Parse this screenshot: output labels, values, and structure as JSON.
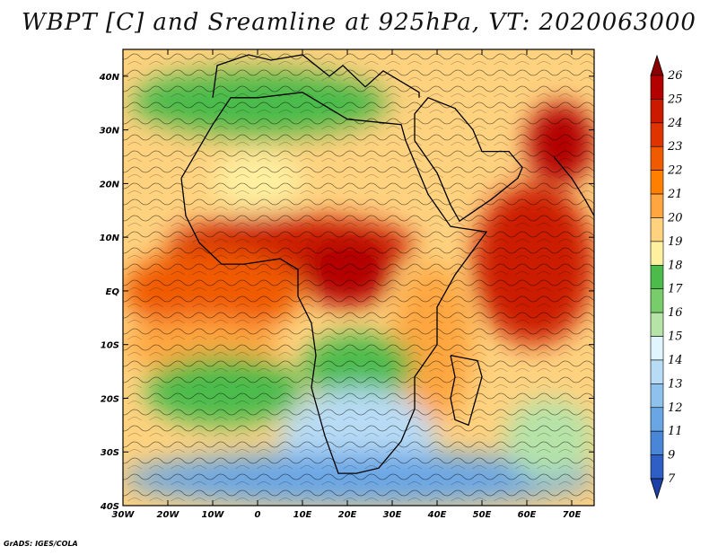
{
  "title": "WBPT [C] and Sreamline at 925hPa, VT: 2020063000",
  "credit": "GrADS: IGES/COLA",
  "map": {
    "lon_range": [
      -30,
      75
    ],
    "lat_range": [
      -40,
      45
    ],
    "lat_ticks": [
      {
        "value": 40,
        "label": "40N"
      },
      {
        "value": 30,
        "label": "30N"
      },
      {
        "value": 20,
        "label": "20N"
      },
      {
        "value": 10,
        "label": "10N"
      },
      {
        "value": 0,
        "label": "EQ"
      },
      {
        "value": -10,
        "label": "10S"
      },
      {
        "value": -20,
        "label": "20S"
      },
      {
        "value": -30,
        "label": "30S"
      },
      {
        "value": -40,
        "label": "40S"
      }
    ],
    "lon_ticks": [
      {
        "value": -30,
        "label": "30W"
      },
      {
        "value": -20,
        "label": "20W"
      },
      {
        "value": -10,
        "label": "10W"
      },
      {
        "value": 0,
        "label": "0"
      },
      {
        "value": 10,
        "label": "10E"
      },
      {
        "value": 20,
        "label": "20E"
      },
      {
        "value": 30,
        "label": "30E"
      },
      {
        "value": 40,
        "label": "40E"
      },
      {
        "value": 50,
        "label": "50E"
      },
      {
        "value": 60,
        "label": "60E"
      },
      {
        "value": 70,
        "label": "70E"
      }
    ],
    "field_regions": [
      {
        "name": "north-africa-warm",
        "lon": [
          -25,
          45
        ],
        "lat": [
          22,
          45
        ],
        "level": 19
      },
      {
        "name": "mediterranean-band",
        "lon": [
          -28,
          30
        ],
        "lat": [
          28,
          42
        ],
        "level": 17
      },
      {
        "name": "sahara-green",
        "lon": [
          -10,
          10
        ],
        "lat": [
          15,
          26
        ],
        "level": 18
      },
      {
        "name": "sahel-hot",
        "lon": [
          -20,
          35
        ],
        "lat": [
          3,
          14
        ],
        "level": 24
      },
      {
        "name": "central-africa-hot",
        "lon": [
          10,
          30
        ],
        "lat": [
          -3,
          10
        ],
        "level": 25
      },
      {
        "name": "arabian-sea-hot",
        "lon": [
          48,
          75
        ],
        "lat": [
          -10,
          20
        ],
        "level": 24
      },
      {
        "name": "india-hot",
        "lon": [
          60,
          75
        ],
        "lat": [
          20,
          35
        ],
        "level": 25
      },
      {
        "name": "gulf-guinea-warm",
        "lon": [
          -30,
          10
        ],
        "lat": [
          -8,
          8
        ],
        "level": 22
      },
      {
        "name": "south-atlantic-warm",
        "lon": [
          -30,
          5
        ],
        "lat": [
          -15,
          -5
        ],
        "level": 20
      },
      {
        "name": "east-africa-warm",
        "lon": [
          30,
          48
        ],
        "lat": [
          -25,
          5
        ],
        "level": 20
      },
      {
        "name": "southern-africa-green",
        "lon": [
          10,
          35
        ],
        "lat": [
          -20,
          -8
        ],
        "level": 17
      },
      {
        "name": "south-atlantic-green",
        "lon": [
          -25,
          10
        ],
        "lat": [
          -25,
          -12
        ],
        "level": 17
      },
      {
        "name": "southern-cool",
        "lon": [
          5,
          40
        ],
        "lat": [
          -38,
          -18
        ],
        "level": 13
      },
      {
        "name": "southern-ocean-cold",
        "lon": [
          -30,
          75
        ],
        "lat": [
          -40,
          -30
        ],
        "level": 11
      },
      {
        "name": "south-indian-ocean",
        "lon": [
          55,
          75
        ],
        "lat": [
          -35,
          -20
        ],
        "level": 15
      }
    ]
  },
  "colorbar": {
    "levels": [
      "26",
      "25",
      "24",
      "23",
      "22",
      "21",
      "20",
      "19",
      "18",
      "17",
      "16",
      "15",
      "14",
      "13",
      "12",
      "11",
      "9",
      "7"
    ],
    "colors": [
      "#8b0000",
      "#b30000",
      "#cc1a00",
      "#e03400",
      "#f05a00",
      "#ff8000",
      "#ffa640",
      "#ffd27f",
      "#fff0a0",
      "#4cbb4c",
      "#79cc6a",
      "#b5e3a8",
      "#e0f5ff",
      "#b8dcf5",
      "#8ec2ec",
      "#6aa6e4",
      "#4a86d8",
      "#2f5fc4",
      "#1d3fa8"
    ]
  }
}
